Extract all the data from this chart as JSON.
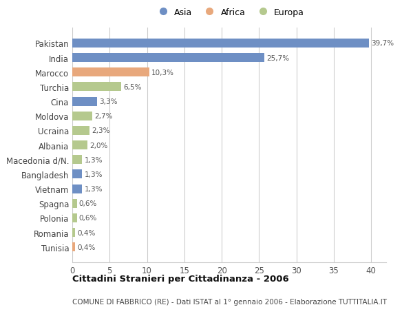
{
  "categories": [
    "Pakistan",
    "India",
    "Marocco",
    "Turchia",
    "Cina",
    "Moldova",
    "Ucraina",
    "Albania",
    "Macedonia d/N.",
    "Bangladesh",
    "Vietnam",
    "Spagna",
    "Polonia",
    "Romania",
    "Tunisia"
  ],
  "values": [
    39.7,
    25.7,
    10.3,
    6.5,
    3.3,
    2.7,
    2.3,
    2.0,
    1.3,
    1.3,
    1.3,
    0.6,
    0.6,
    0.4,
    0.4
  ],
  "labels": [
    "39,7%",
    "25,7%",
    "10,3%",
    "6,5%",
    "3,3%",
    "2,7%",
    "2,3%",
    "2,0%",
    "1,3%",
    "1,3%",
    "1,3%",
    "0,6%",
    "0,6%",
    "0,4%",
    "0,4%"
  ],
  "colors": [
    "#6e8fc4",
    "#6e8fc4",
    "#e8a87c",
    "#b5c98e",
    "#6e8fc4",
    "#b5c98e",
    "#b5c98e",
    "#b5c98e",
    "#b5c98e",
    "#6e8fc4",
    "#6e8fc4",
    "#b5c98e",
    "#b5c98e",
    "#b5c98e",
    "#e8a87c"
  ],
  "legend_labels": [
    "Asia",
    "Africa",
    "Europa"
  ],
  "legend_colors": [
    "#6e8fc4",
    "#e8a87c",
    "#b5c98e"
  ],
  "title": "Cittadini Stranieri per Cittadinanza - 2006",
  "subtitle": "COMUNE DI FABBRICO (RE) - Dati ISTAT al 1° gennaio 2006 - Elaborazione TUTTITALIA.IT",
  "xlim": [
    0,
    42
  ],
  "xticks": [
    0,
    5,
    10,
    15,
    20,
    25,
    30,
    35,
    40
  ],
  "background_color": "#ffffff",
  "grid_color": "#cccccc"
}
